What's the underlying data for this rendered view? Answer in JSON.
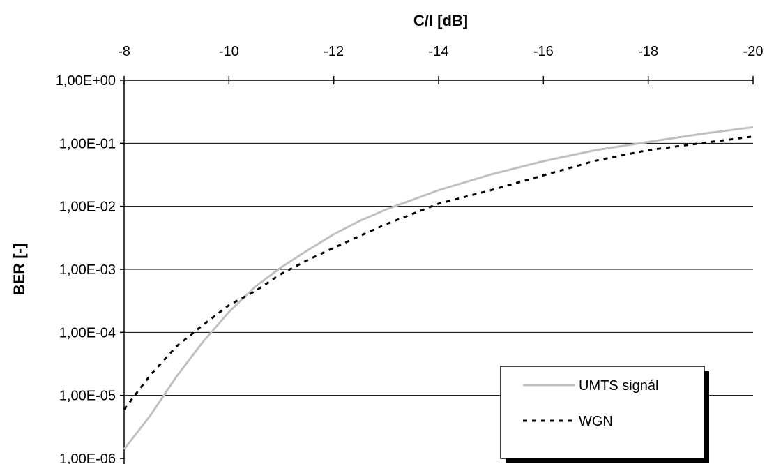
{
  "chart_data": {
    "type": "line",
    "title": "",
    "xlabel": "C/I [dB]",
    "ylabel": "BER [-]",
    "xlim": [
      -8,
      -20
    ],
    "x_ticks": [
      -8,
      -10,
      -12,
      -14,
      -16,
      -18,
      -20
    ],
    "x_tick_labels": [
      "-8",
      "-10",
      "-12",
      "-14",
      "-16",
      "-18",
      "-20"
    ],
    "y_scale": "log",
    "ylim": [
      1e-06,
      1
    ],
    "y_ticks": [
      1,
      0.1,
      0.01,
      0.001,
      0.0001,
      1e-05,
      1e-06
    ],
    "y_tick_labels": [
      "1,00E+00",
      "1,00E-01",
      "1,00E-02",
      "1,00E-03",
      "1,00E-04",
      "1,00E-05",
      "1,00E-06"
    ],
    "x_axis_position": "top",
    "grid": "horizontal",
    "legend_position": "bottom-right",
    "series": [
      {
        "name": "UMTS signál",
        "color": "#c0c0c0",
        "style": "solid",
        "x": [
          -8,
          -8.5,
          -9,
          -9.5,
          -10,
          -10.5,
          -11,
          -11.5,
          -12,
          -12.5,
          -13,
          -14,
          -15,
          -16,
          -17,
          -18,
          -19,
          -20
        ],
        "y": [
          1.4e-06,
          4.8e-06,
          2e-05,
          7e-05,
          0.00021,
          0.00053,
          0.00108,
          0.002,
          0.0036,
          0.0059,
          0.0089,
          0.018,
          0.032,
          0.052,
          0.078,
          0.105,
          0.14,
          0.18
        ]
      },
      {
        "name": "WGN",
        "color": "#000000",
        "style": "dashed",
        "x": [
          -8,
          -8.5,
          -9,
          -9.5,
          -10,
          -10.5,
          -11,
          -11.5,
          -12,
          -12.5,
          -13,
          -14,
          -15,
          -16,
          -17,
          -18,
          -19,
          -20
        ],
        "y": [
          6e-06,
          2.1e-05,
          6e-05,
          0.00013,
          0.00027,
          0.00045,
          0.00085,
          0.0014,
          0.0022,
          0.0034,
          0.0052,
          0.011,
          0.018,
          0.031,
          0.053,
          0.078,
          0.1,
          0.128
        ]
      }
    ]
  }
}
